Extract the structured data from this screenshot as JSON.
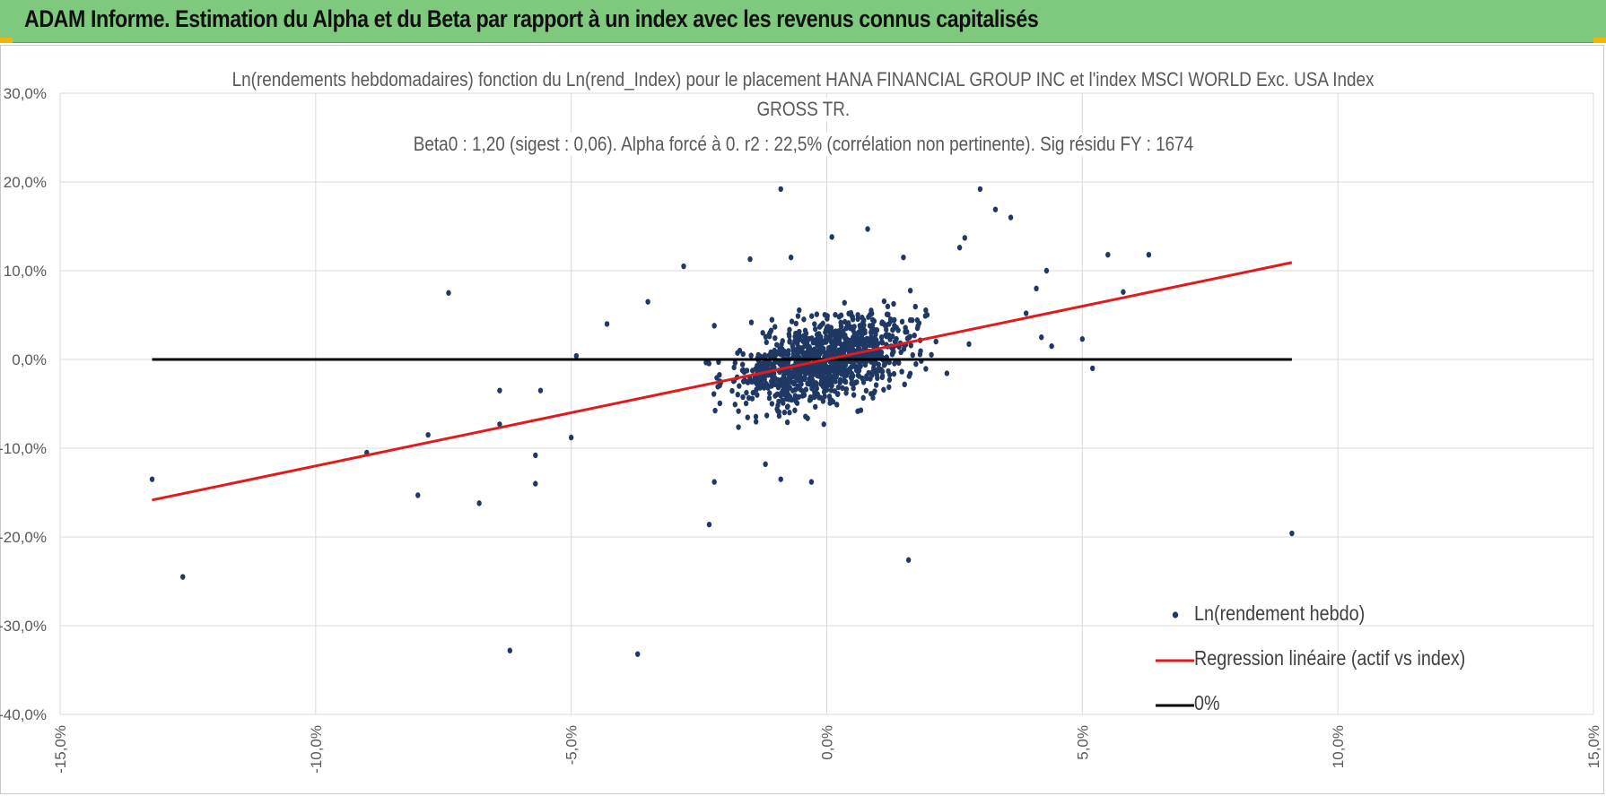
{
  "header": {
    "banner_title": "ADAM Informe. Estimation du Alpha et du Beta par rapport à un index avec les revenus connus capitalisés",
    "banner_color": "#7fc97f"
  },
  "chart_data": {
    "type": "scatter",
    "title_lines": [
      "Ln(rendements hebdomadaires) fonction du Ln(rend_Index) pour le placement HANA FINANCIAL GROUP INC et l'index MSCI WORLD Exc. USA Index",
      "GROSS TR.",
      "Beta0 : 1,20 (sigest : 0,06).  Alpha forcé à 0. r2 : 22,5% (corrélation non pertinente). Sig résidu FY : 1674"
    ],
    "xlabel": "",
    "ylabel": "",
    "xlim": [
      -15,
      15
    ],
    "ylim": [
      -40,
      30
    ],
    "x_ticks": [
      -15,
      -10,
      -5,
      0,
      5,
      10,
      15
    ],
    "y_ticks": [
      -40,
      -30,
      -20,
      -10,
      0,
      10,
      20,
      30
    ],
    "x_tick_labels": [
      "-15,0%",
      "-10,0%",
      "-5,0%",
      "0,0%",
      "5,0%",
      "10,0%",
      "15,0%"
    ],
    "y_tick_labels": [
      "-40,0%",
      "-30,0%",
      "-20,0%",
      "-10,0%",
      "0,0%",
      "10,0%",
      "20,0%",
      "30,0%"
    ],
    "grid": true,
    "legend_position": "bottom-right",
    "series": [
      {
        "name": "Ln(rendement hebdo)",
        "kind": "scatter",
        "color": "#1f3864",
        "outliers": [
          [
            -13.2,
            -13.5
          ],
          [
            -12.6,
            -24.5
          ],
          [
            -7.4,
            7.5
          ],
          [
            -9,
            -10.5
          ],
          [
            -7.8,
            -8.5
          ],
          [
            -8,
            -15.3
          ],
          [
            -6.8,
            -16.2
          ],
          [
            -6.2,
            -32.8
          ],
          [
            -5.7,
            -14
          ],
          [
            -5.7,
            -10.8
          ],
          [
            -3.7,
            -33.2
          ],
          [
            -2.3,
            -18.6
          ],
          [
            -0.9,
            19.2
          ],
          [
            3,
            19.2
          ],
          [
            3.3,
            16.9
          ],
          [
            3.6,
            16
          ],
          [
            5.5,
            11.8
          ],
          [
            6.3,
            11.8
          ],
          [
            5.8,
            7.6
          ],
          [
            9.1,
            -19.6
          ],
          [
            1.6,
            -22.6
          ],
          [
            5.2,
            -1
          ],
          [
            5,
            2.3
          ],
          [
            -2.8,
            10.5
          ],
          [
            -3.5,
            6.5
          ],
          [
            -4.3,
            4
          ],
          [
            -6.4,
            -3.5
          ],
          [
            -6.4,
            -7.3
          ],
          [
            -5.6,
            -3.5
          ],
          [
            -5,
            -8.8
          ],
          [
            -2.2,
            -13.8
          ],
          [
            -1.2,
            -11.8
          ],
          [
            -0.9,
            -13.5
          ],
          [
            -0.3,
            -13.8
          ],
          [
            0.1,
            13.8
          ],
          [
            0.8,
            14.7
          ],
          [
            1.5,
            11.5
          ],
          [
            2.6,
            12.6
          ],
          [
            2.7,
            13.7
          ],
          [
            4.3,
            10
          ],
          [
            4.1,
            8
          ],
          [
            3.9,
            5.2
          ],
          [
            4.4,
            1.5
          ],
          [
            4.2,
            2.5
          ],
          [
            -1.5,
            11.3
          ],
          [
            -0.7,
            11.5
          ],
          [
            -2.2,
            3.8
          ],
          [
            -4.9,
            0.4
          ]
        ],
        "cluster": {
          "count": 1150,
          "x_range": [
            -3.5,
            3.5
          ],
          "y_range": [
            -9,
            9
          ]
        }
      },
      {
        "name": "Regression linéaire (actif vs index)",
        "kind": "line",
        "color": "#e31a1c",
        "points": [
          [
            -13.2,
            -15.84
          ],
          [
            9.1,
            10.92
          ]
        ]
      },
      {
        "name": "0%",
        "kind": "line",
        "color": "#000000",
        "points": [
          [
            -13.2,
            0
          ],
          [
            9.1,
            0
          ]
        ]
      }
    ]
  }
}
